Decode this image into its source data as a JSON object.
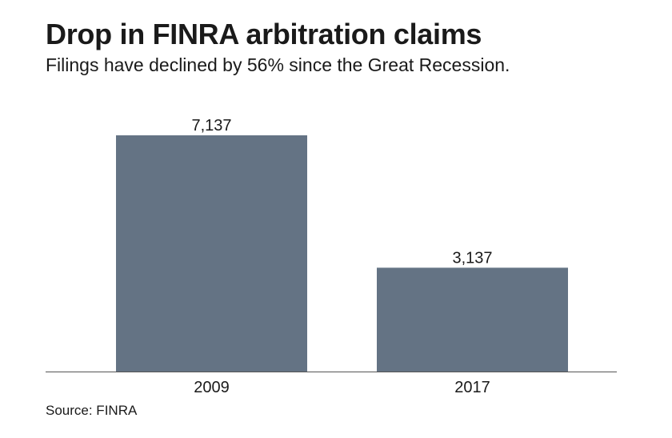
{
  "title": "Drop in FINRA arbitration claims",
  "subtitle": "Filings have declined by 56% since the Great Recession.",
  "source": "Source: FINRA",
  "colors": {
    "bar": "#647384",
    "axis": "#555555",
    "text": "#1a1a1a"
  },
  "chart_data": {
    "type": "bar",
    "categories": [
      "2009",
      "2017"
    ],
    "values": [
      7137,
      3137
    ],
    "data_labels": [
      "7,137",
      "3,137"
    ],
    "title": "Drop in FINRA arbitration claims",
    "subtitle": "Filings have declined by 56% since the Great Recession.",
    "xlabel": "",
    "ylabel": "",
    "ylim": [
      0,
      7137
    ],
    "grid": false,
    "legend": "none"
  }
}
